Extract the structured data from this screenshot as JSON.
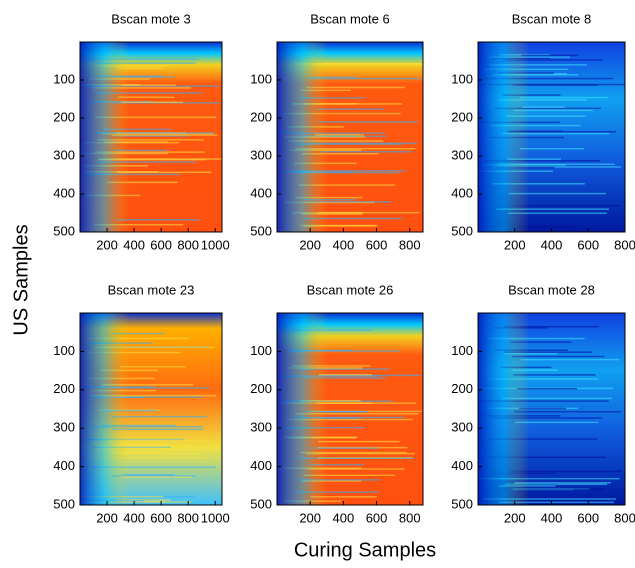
{
  "chart_data": [
    {
      "type": "heatmap",
      "title": "Bscan mote 3",
      "xlim": [
        0,
        1050
      ],
      "xticks": [
        200,
        400,
        600,
        800,
        1000
      ],
      "ylim": [
        0,
        500
      ],
      "yticks": [
        100,
        200,
        300,
        400,
        500
      ]
    },
    {
      "type": "heatmap",
      "title": "Bscan mote 6",
      "xlim": [
        0,
        880
      ],
      "xticks": [
        200,
        400,
        600,
        800
      ],
      "ylim": [
        0,
        500
      ],
      "yticks": [
        100,
        200,
        300,
        400,
        500
      ]
    },
    {
      "type": "heatmap",
      "title": "Bscan mote 8",
      "xlim": [
        0,
        800
      ],
      "xticks": [
        200,
        400,
        600,
        800
      ],
      "ylim": [
        0,
        500
      ],
      "yticks": [
        100,
        200,
        300,
        400,
        500
      ]
    },
    {
      "type": "heatmap",
      "title": "Bscan mote 23",
      "xlim": [
        0,
        1050
      ],
      "xticks": [
        200,
        400,
        600,
        800,
        1000
      ],
      "ylim": [
        0,
        500
      ],
      "yticks": [
        100,
        200,
        300,
        400,
        500
      ]
    },
    {
      "type": "heatmap",
      "title": "Bscan mote 26",
      "xlim": [
        0,
        880
      ],
      "xticks": [
        200,
        400,
        600,
        800
      ],
      "ylim": [
        0,
        500
      ],
      "yticks": [
        100,
        200,
        300,
        400,
        500
      ]
    },
    {
      "type": "heatmap",
      "title": "Bscan mote 28",
      "xlim": [
        0,
        800
      ],
      "xticks": [
        200,
        400,
        600,
        800
      ],
      "ylim": [
        0,
        500
      ],
      "yticks": [
        100,
        200,
        300,
        400,
        500
      ]
    }
  ],
  "figure": {
    "ylabel": "US Samples",
    "xlabel": "Curing Samples"
  }
}
